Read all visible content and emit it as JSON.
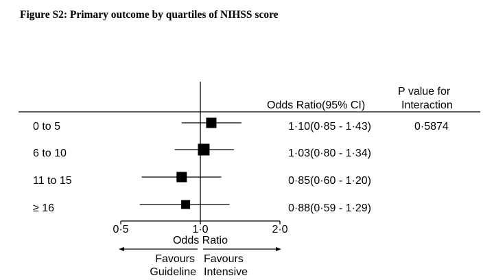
{
  "title": "Figure S2: Primary outcome by quartiles of NIHSS score",
  "columns": {
    "or_header": "Odds Ratio(95% CI)",
    "p_header_line1": "P value for",
    "p_header_line2": "Interaction"
  },
  "axis": {
    "tick_labels": [
      "0·5",
      "1·0",
      "2·0"
    ],
    "xlabel": "Odds Ratio",
    "left_favours_line1": "Favours",
    "left_favours_line2": "Guideline",
    "right_favours_line1": "Favours",
    "right_favours_line2": "Intensive"
  },
  "chart_data": {
    "type": "forest",
    "title": "Figure S2: Primary outcome by quartiles of NIHSS score",
    "xlabel": "Odds Ratio",
    "x_scale": "log",
    "xlim": [
      0.5,
      2.0
    ],
    "xticks": [
      0.5,
      1.0,
      2.0
    ],
    "xtick_labels": [
      "0·5",
      "1·0",
      "2·0"
    ],
    "reference_line": 1.0,
    "rows": [
      {
        "label": "0 to 5",
        "or": 1.1,
        "lower": 0.85,
        "upper": 1.43,
        "or_text": "1·10(0·85 - 1·43)",
        "p_text": "0·5874"
      },
      {
        "label": "6 to 10",
        "or": 1.03,
        "lower": 0.8,
        "upper": 1.34,
        "or_text": "1·03(0·80 - 1·34)",
        "p_text": ""
      },
      {
        "label": "11 to 15",
        "or": 0.85,
        "lower": 0.6,
        "upper": 1.2,
        "or_text": "0·85(0·60 - 1·20)",
        "p_text": ""
      },
      {
        "label": "≥ 16",
        "or": 0.88,
        "lower": 0.59,
        "upper": 1.29,
        "or_text": "0·88(0·59 - 1·29)",
        "p_text": ""
      }
    ]
  }
}
